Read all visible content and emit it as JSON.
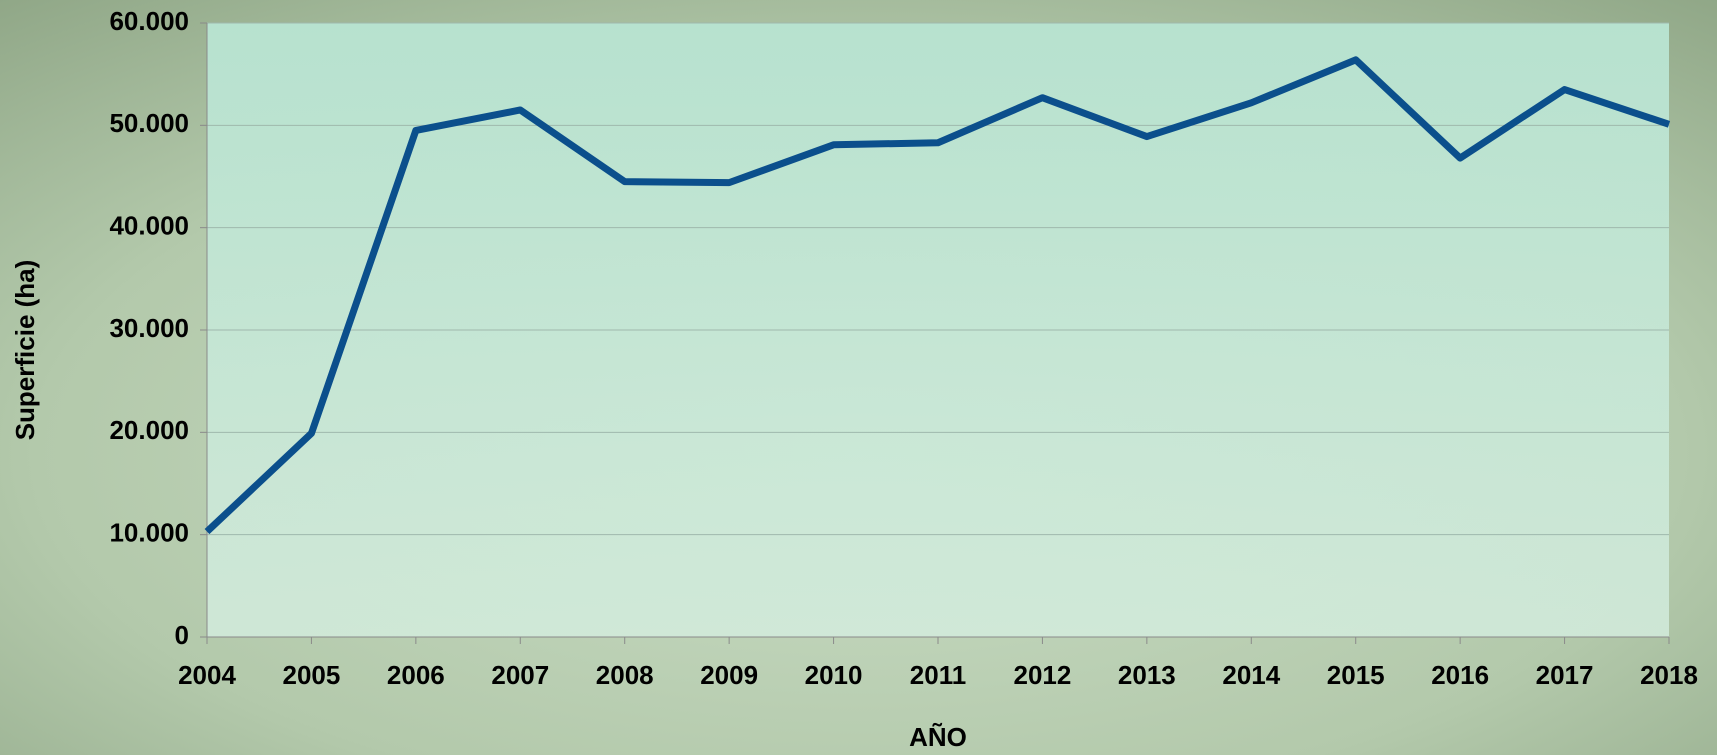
{
  "chart_data": {
    "type": "line",
    "x_label": "AÑO",
    "y_label": "Superficie (ha)",
    "categories": [
      "2004",
      "2005",
      "2006",
      "2007",
      "2008",
      "2009",
      "2010",
      "2011",
      "2012",
      "2013",
      "2014",
      "2015",
      "2016",
      "2017",
      "2018"
    ],
    "values": [
      10300,
      19900,
      49500,
      51500,
      44500,
      44400,
      48100,
      48300,
      52700,
      48900,
      52200,
      56400,
      46800,
      53500,
      50100
    ],
    "color": "#0b4f8c",
    "ylim": [
      0,
      60000
    ],
    "yticks": [
      0,
      {
        "value": 10000,
        "label": "10.000"
      },
      {
        "value": 20000,
        "label": "20.000"
      },
      {
        "value": 30000,
        "label": "30.000"
      },
      {
        "value": 40000,
        "label": "40.000"
      },
      {
        "value": 50000,
        "label": "50.000"
      },
      {
        "value": 60000,
        "label": "60.000"
      }
    ],
    "grid": true
  }
}
